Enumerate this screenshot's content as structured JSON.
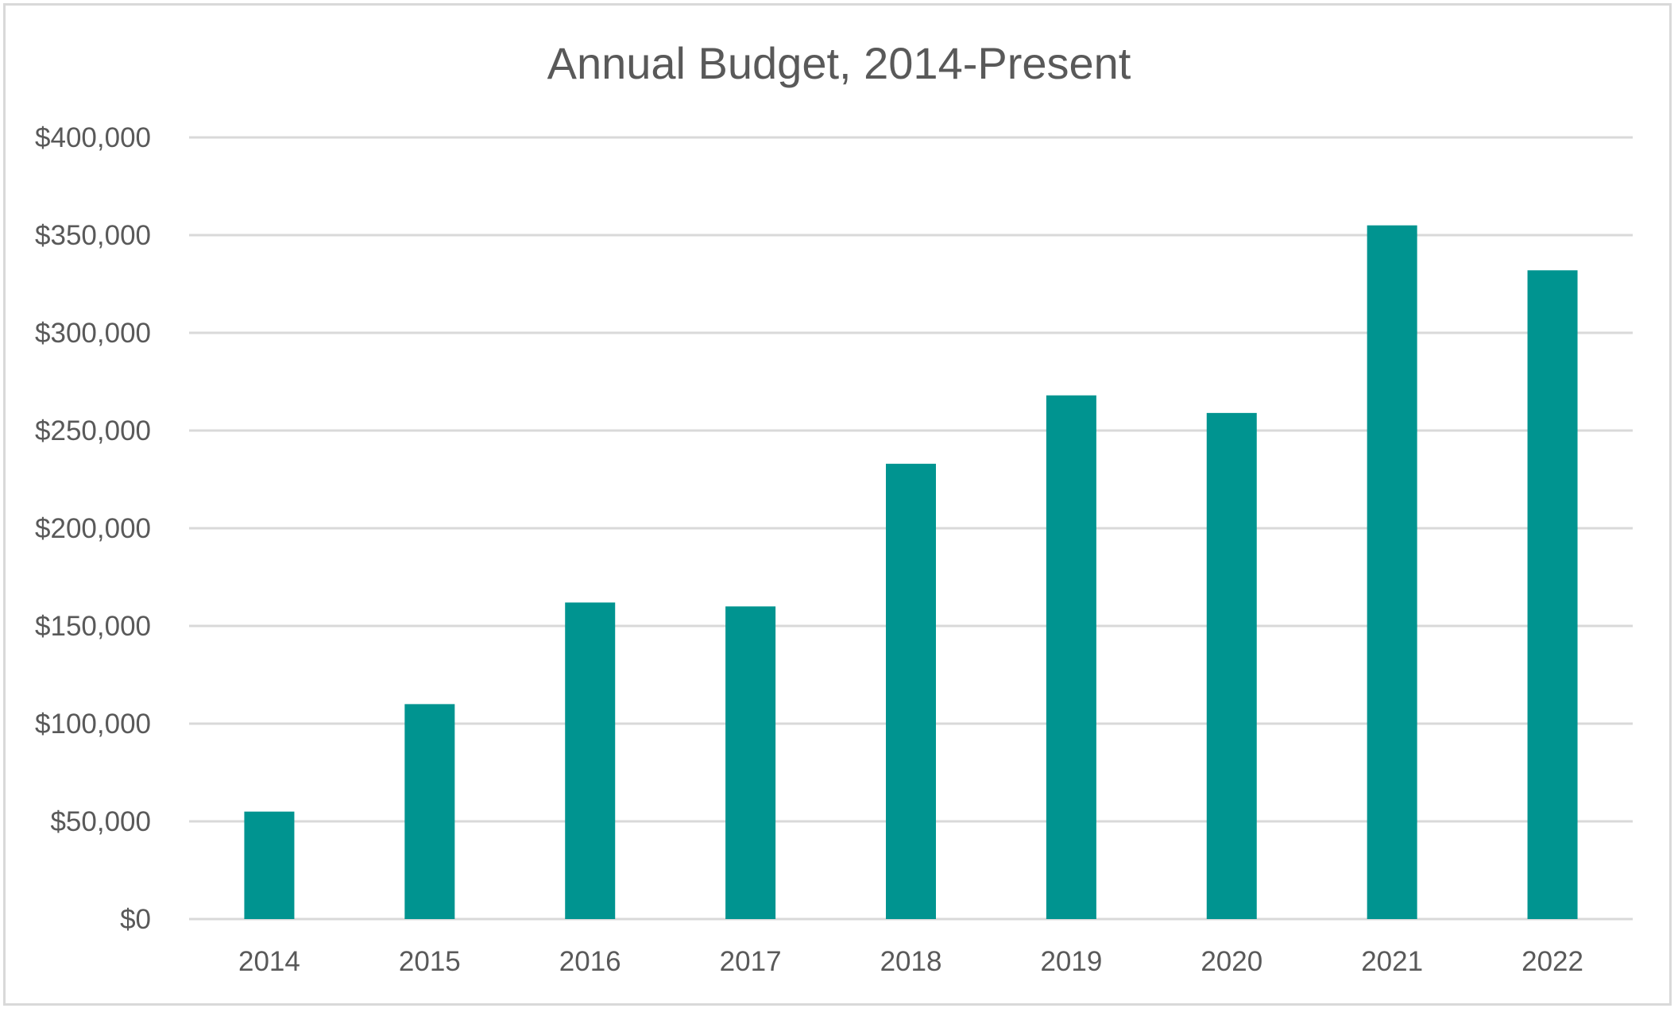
{
  "chart_data": {
    "type": "bar",
    "title": "Annual Budget, 2014-Present",
    "xlabel": "",
    "ylabel": "",
    "categories": [
      "2014",
      "2015",
      "2016",
      "2017",
      "2018",
      "2019",
      "2020",
      "2021",
      "2022"
    ],
    "series": [
      {
        "values": [
          55000,
          110000,
          162000,
          160000,
          233000,
          268000,
          259000,
          355000,
          332000
        ],
        "color": "#009490"
      }
    ],
    "ylim": [
      0,
      400000
    ],
    "y_ticks": [
      0,
      50000,
      100000,
      150000,
      200000,
      250000,
      300000,
      350000,
      400000
    ],
    "y_tick_labels": [
      "$0",
      "$50,000",
      "$100,000",
      "$150,000",
      "$200,000",
      "$250,000",
      "$300,000",
      "$350,000",
      "$400,000"
    ],
    "grid": true,
    "legend": "none"
  },
  "colors": {
    "bar": "#009490",
    "gridline": "#d9d9d9",
    "text": "#595959",
    "border": "#d9d9d9"
  }
}
